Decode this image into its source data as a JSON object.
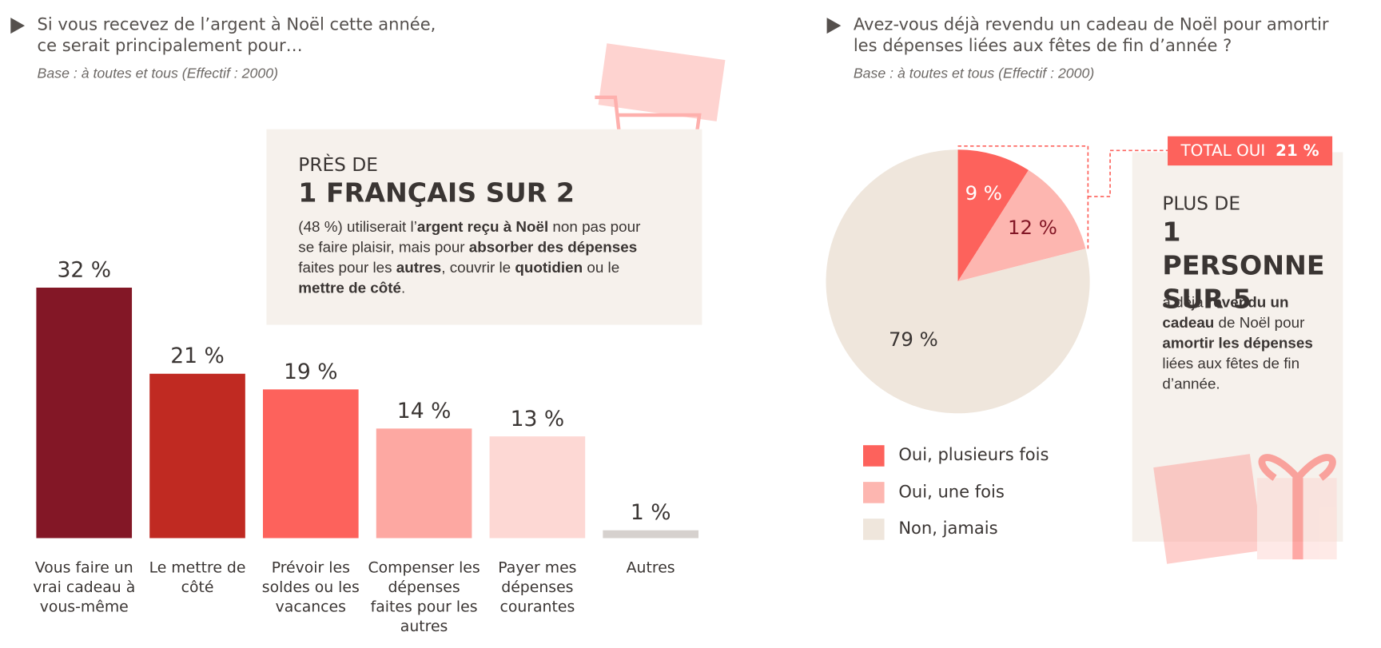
{
  "chart_data": [
    {
      "type": "bar",
      "title": "Si vous recevez de l’argent à Noël cette année, ce serait principalement pour…",
      "subtitle": "Base : à toutes et tous (Effectif : 2000)",
      "categories": [
        "Vous faire un vrai cadeau à vous-même",
        "Le mettre de côté",
        "Prévoir les soldes ou les vacances",
        "Compenser les dépenses faites pour les autres",
        "Payer mes dépenses courantes",
        "Autres"
      ],
      "values": [
        32,
        21,
        19,
        14,
        13,
        1
      ],
      "value_labels": [
        "32 %",
        "21 %",
        "19 %",
        "14 %",
        "13 %",
        "1 %"
      ],
      "colors": [
        "#831726",
        "#c02a22",
        "#fd625c",
        "#fda8a2",
        "#fdd8d4",
        "#d6d1ce"
      ]
    },
    {
      "type": "pie",
      "title": "Avez-vous déjà revendu un cadeau de Noël pour amortir les dépenses liées aux fêtes de fin d’année ?",
      "subtitle": "Base : à toutes et tous (Effectif : 2000)",
      "categories": [
        "Oui, plusieurs fois",
        "Oui, une fois",
        "Non, jamais"
      ],
      "values": [
        9,
        12,
        79
      ],
      "value_labels": [
        "9 %",
        "12 %",
        "79 %"
      ],
      "colors": [
        "#fd625c",
        "#fdb6b0",
        "#efe6dc"
      ],
      "annotation": "TOTAL OUI",
      "annotation_value": "21 %"
    }
  ],
  "callouts": [
    {
      "kicker": "PRÈS DE",
      "headline": "1 FRANÇAIS SUR 2",
      "body": [
        {
          "text": "(48 %) utiliserait l’"
        },
        {
          "text": "argent reçu à Noël",
          "bold": true
        },
        {
          "text": " non pas pour se faire plaisir, mais pour "
        },
        {
          "text": "absorber des dépenses",
          "bold": true
        },
        {
          "text": " faites pour les "
        },
        {
          "text": "autres",
          "bold": true
        },
        {
          "text": ", couvrir le "
        },
        {
          "text": "quotidien",
          "bold": true
        },
        {
          "text": " ou le "
        },
        {
          "text": "mettre de côté",
          "bold": true
        },
        {
          "text": "."
        }
      ]
    },
    {
      "kicker": "PLUS DE",
      "headline": "1 PERSONNE SUR 5",
      "body": [
        {
          "text": "a déjà "
        },
        {
          "text": "revendu un cadeau",
          "bold": true
        },
        {
          "text": " de Noël pour "
        },
        {
          "text": "amortir les dépenses",
          "bold": true
        },
        {
          "text": " liées aux fêtes de fin d’année."
        }
      ]
    }
  ]
}
